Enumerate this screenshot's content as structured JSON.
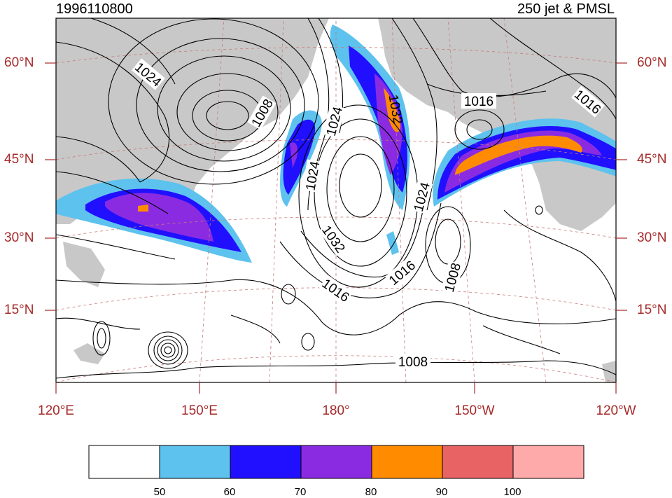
{
  "header": {
    "date": "1996110800",
    "title": "250 jet & PMSL"
  },
  "map": {
    "domain": {
      "lon_west": "120°E",
      "lon_east": "120°W",
      "lat_south": 0,
      "lat_north": 70
    },
    "lat_labels": [
      "60°N",
      "45°N",
      "30°N",
      "15°N"
    ],
    "lon_labels": [
      "120°E",
      "150°E",
      "180°",
      "150°W",
      "120°W"
    ],
    "isobar_labels": [
      "1024",
      "1008",
      "1024",
      "1024",
      "1032",
      "1016",
      "1016",
      "1032",
      "1024",
      "1016",
      "1016",
      "1008",
      "1016",
      "1008"
    ],
    "colors": {
      "land": "#c8c8c8",
      "grid": "#a52a2a",
      "axis_label": "#a52a2a",
      "contour": "#000000"
    }
  },
  "colorbar": {
    "ticks": [
      "50",
      "60",
      "70",
      "80",
      "90",
      "100"
    ],
    "colors": [
      "#ffffff",
      "#5ec2ee",
      "#2010ff",
      "#8a2be2",
      "#ff8c00",
      "#e86464",
      "#ffaaaa"
    ]
  }
}
